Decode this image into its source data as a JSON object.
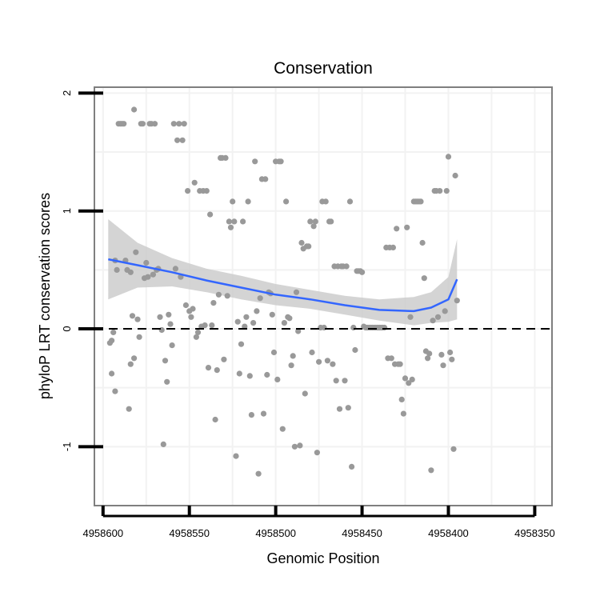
{
  "chart_data": {
    "type": "scatter",
    "title": "Conservation",
    "xlabel": "Genomic Position",
    "ylabel": "phyloP LRT conservation scores",
    "xlim": [
      4958605,
      4958340
    ],
    "ylim": [
      -1.5,
      2.05
    ],
    "x_reversed": true,
    "xticks": [
      4958600,
      4958550,
      4958500,
      4958450,
      4958400,
      4958350
    ],
    "xtick_labels": [
      "4958600",
      "4958550",
      "4958500",
      "4958450",
      "4958400",
      "4958350"
    ],
    "yticks": [
      2,
      1,
      0,
      -1
    ],
    "ytick_labels": [
      "2",
      "1",
      "0",
      "-1"
    ],
    "reference_line": {
      "y": 0,
      "style": "dashed"
    },
    "colors": {
      "points": "#999999",
      "smooth": "#3366ff",
      "band": "#cccccc",
      "frame": "#7f7f7f",
      "grid": "#f2f2f2"
    },
    "series": [
      {
        "name": "scores",
        "points": [
          [
            4958596,
            -0.12
          ],
          [
            4958595,
            -0.1
          ],
          [
            4958595,
            -0.38
          ],
          [
            4958594,
            -0.03
          ],
          [
            4958593,
            -0.53
          ],
          [
            4958593,
            0.58
          ],
          [
            4958592,
            0.5
          ],
          [
            4958591,
            1.74
          ],
          [
            4958590,
            1.74
          ],
          [
            4958589,
            1.74
          ],
          [
            4958588,
            1.74
          ],
          [
            4958587,
            0.58
          ],
          [
            4958586,
            0.5
          ],
          [
            4958585,
            -0.68
          ],
          [
            4958584,
            -0.3
          ],
          [
            4958584,
            0.48
          ],
          [
            4958583,
            0.11
          ],
          [
            4958582,
            1.86
          ],
          [
            4958582,
            -0.25
          ],
          [
            4958581,
            0.65
          ],
          [
            4958580,
            0.08
          ],
          [
            4958579,
            -0.07
          ],
          [
            4958578,
            1.74
          ],
          [
            4958577,
            1.74
          ],
          [
            4958576,
            0.43
          ],
          [
            4958575,
            0.56
          ],
          [
            4958574,
            0.44
          ],
          [
            4958573,
            1.74
          ],
          [
            4958572,
            1.74
          ],
          [
            4958571,
            0.46
          ],
          [
            4958570,
            1.74
          ],
          [
            4958569,
            0.5
          ],
          [
            4958568,
            0.51
          ],
          [
            4958567,
            0.1
          ],
          [
            4958566,
            -0.01
          ],
          [
            4958565,
            -0.98
          ],
          [
            4958564,
            -0.27
          ],
          [
            4958563,
            -0.45
          ],
          [
            4958562,
            0.12
          ],
          [
            4958561,
            0.04
          ],
          [
            4958560,
            -0.14
          ],
          [
            4958559,
            1.74
          ],
          [
            4958558,
            0.51
          ],
          [
            4958557,
            1.6
          ],
          [
            4958556,
            1.74
          ],
          [
            4958555,
            0.44
          ],
          [
            4958554,
            1.6
          ],
          [
            4958553,
            1.74
          ],
          [
            4958552,
            0.2
          ],
          [
            4958551,
            1.17
          ],
          [
            4958550,
            0.15
          ],
          [
            4958549,
            0.1
          ],
          [
            4958548,
            0.17
          ],
          [
            4958547,
            1.24
          ],
          [
            4958546,
            -0.07
          ],
          [
            4958545,
            -0.03
          ],
          [
            4958544,
            1.17
          ],
          [
            4958543,
            0.02
          ],
          [
            4958542,
            1.17
          ],
          [
            4958541,
            0.03
          ],
          [
            4958540,
            1.17
          ],
          [
            4958539,
            -0.33
          ],
          [
            4958538,
            0.97
          ],
          [
            4958537,
            0.03
          ],
          [
            4958536,
            0.22
          ],
          [
            4958535,
            -0.77
          ],
          [
            4958534,
            -0.35
          ],
          [
            4958533,
            0.29
          ],
          [
            4958532,
            1.45
          ],
          [
            4958531,
            1.45
          ],
          [
            4958530,
            -0.26
          ],
          [
            4958529,
            1.45
          ],
          [
            4958528,
            0.28
          ],
          [
            4958527,
            0.91
          ],
          [
            4958526,
            0.86
          ],
          [
            4958525,
            1.08
          ],
          [
            4958524,
            0.91
          ],
          [
            4958523,
            -1.08
          ],
          [
            4958522,
            0.06
          ],
          [
            4958521,
            -0.38
          ],
          [
            4958520,
            -0.13
          ],
          [
            4958519,
            0.91
          ],
          [
            4958518,
            0.02
          ],
          [
            4958517,
            0.1
          ],
          [
            4958516,
            1.08
          ],
          [
            4958515,
            -0.4
          ],
          [
            4958514,
            -0.73
          ],
          [
            4958513,
            0.05
          ],
          [
            4958512,
            1.42
          ],
          [
            4958511,
            0.15
          ],
          [
            4958510,
            -1.23
          ],
          [
            4958509,
            0.26
          ],
          [
            4958508,
            1.27
          ],
          [
            4958507,
            -0.72
          ],
          [
            4958506,
            1.27
          ],
          [
            4958505,
            -0.39
          ],
          [
            4958504,
            0.31
          ],
          [
            4958503,
            0.3
          ],
          [
            4958502,
            0.12
          ],
          [
            4958501,
            -0.2
          ],
          [
            4958500,
            1.42
          ],
          [
            4958499,
            -0.43
          ],
          [
            4958498,
            1.42
          ],
          [
            4958497,
            1.42
          ],
          [
            4958496,
            -0.85
          ],
          [
            4958495,
            0.05
          ],
          [
            4958494,
            1.08
          ],
          [
            4958493,
            0.1
          ],
          [
            4958492,
            0.09
          ],
          [
            4958491,
            -0.31
          ],
          [
            4958490,
            -0.23
          ],
          [
            4958489,
            -1.0
          ],
          [
            4958488,
            0.31
          ],
          [
            4958487,
            -0.02
          ],
          [
            4958486,
            -0.99
          ],
          [
            4958485,
            0.73
          ],
          [
            4958484,
            0.68
          ],
          [
            4958483,
            -0.55
          ],
          [
            4958482,
            0.7
          ],
          [
            4958481,
            0.7
          ],
          [
            4958480,
            0.91
          ],
          [
            4958479,
            -0.2
          ],
          [
            4958478,
            0.87
          ],
          [
            4958477,
            0.91
          ],
          [
            4958476,
            -1.05
          ],
          [
            4958475,
            -0.28
          ],
          [
            4958474,
            0.01
          ],
          [
            4958473,
            1.08
          ],
          [
            4958472,
            0.01
          ],
          [
            4958471,
            1.08
          ],
          [
            4958470,
            -0.27
          ],
          [
            4958469,
            0.91
          ],
          [
            4958468,
            0.91
          ],
          [
            4958467,
            -0.3
          ],
          [
            4958466,
            0.53
          ],
          [
            4958465,
            -0.44
          ],
          [
            4958464,
            0.53
          ],
          [
            4958463,
            -0.68
          ],
          [
            4958462,
            0.53
          ],
          [
            4958461,
            0.53
          ],
          [
            4958460,
            -0.44
          ],
          [
            4958459,
            0.53
          ],
          [
            4958458,
            -0.67
          ],
          [
            4958457,
            1.08
          ],
          [
            4958456,
            -1.17
          ],
          [
            4958455,
            0.01
          ],
          [
            4958454,
            -0.18
          ],
          [
            4958453,
            0.49
          ],
          [
            4958452,
            0.49
          ],
          [
            4958451,
            0.49
          ],
          [
            4958450,
            0.48
          ],
          [
            4958449,
            0.02
          ],
          [
            4958448,
            0.01
          ],
          [
            4958447,
            0.01
          ],
          [
            4958446,
            0.01
          ],
          [
            4958445,
            0.01
          ],
          [
            4958444,
            0.01
          ],
          [
            4958443,
            0.01
          ],
          [
            4958442,
            0.01
          ],
          [
            4958441,
            0.01
          ],
          [
            4958440,
            0.01
          ],
          [
            4958439,
            0.01
          ],
          [
            4958438,
            0.01
          ],
          [
            4958437,
            0.01
          ],
          [
            4958436,
            0.69
          ],
          [
            4958435,
            -0.25
          ],
          [
            4958434,
            0.69
          ],
          [
            4958433,
            -0.25
          ],
          [
            4958432,
            0.69
          ],
          [
            4958431,
            -0.3
          ],
          [
            4958430,
            0.85
          ],
          [
            4958429,
            -0.3
          ],
          [
            4958428,
            -0.3
          ],
          [
            4958427,
            -0.6
          ],
          [
            4958426,
            -0.72
          ],
          [
            4958425,
            -0.42
          ],
          [
            4958424,
            0.86
          ],
          [
            4958423,
            -0.46
          ],
          [
            4958422,
            0.1
          ],
          [
            4958421,
            -0.43
          ],
          [
            4958420,
            1.08
          ],
          [
            4958419,
            1.08
          ],
          [
            4958418,
            1.08
          ],
          [
            4958417,
            1.08
          ],
          [
            4958416,
            1.08
          ],
          [
            4958415,
            0.73
          ],
          [
            4958414,
            0.43
          ],
          [
            4958413,
            -0.19
          ],
          [
            4958412,
            -0.25
          ],
          [
            4958411,
            -0.21
          ],
          [
            4958410,
            -1.2
          ],
          [
            4958409,
            0.07
          ],
          [
            4958408,
            1.17
          ],
          [
            4958407,
            1.17
          ],
          [
            4958406,
            0.1
          ],
          [
            4958405,
            1.17
          ],
          [
            4958404,
            -0.22
          ],
          [
            4958403,
            -0.31
          ],
          [
            4958402,
            0.15
          ],
          [
            4958401,
            1.17
          ],
          [
            4958400,
            1.46
          ],
          [
            4958399,
            -0.2
          ],
          [
            4958398,
            -0.26
          ],
          [
            4958397,
            -1.02
          ],
          [
            4958396,
            1.3
          ],
          [
            4958395,
            0.24
          ]
        ]
      }
    ],
    "smooth": {
      "x": [
        4958597,
        4958580,
        4958560,
        4958540,
        4958520,
        4958500,
        4958480,
        4958460,
        4958440,
        4958420,
        4958410,
        4958400,
        4958395
      ],
      "y": [
        0.59,
        0.54,
        0.48,
        0.41,
        0.35,
        0.29,
        0.25,
        0.2,
        0.16,
        0.15,
        0.18,
        0.25,
        0.42
      ],
      "lower": [
        0.25,
        0.35,
        0.36,
        0.31,
        0.25,
        0.2,
        0.17,
        0.12,
        0.07,
        0.03,
        0.05,
        0.06,
        0.08
      ],
      "upper": [
        0.93,
        0.73,
        0.6,
        0.51,
        0.45,
        0.38,
        0.33,
        0.28,
        0.25,
        0.27,
        0.31,
        0.44,
        0.76
      ]
    }
  }
}
